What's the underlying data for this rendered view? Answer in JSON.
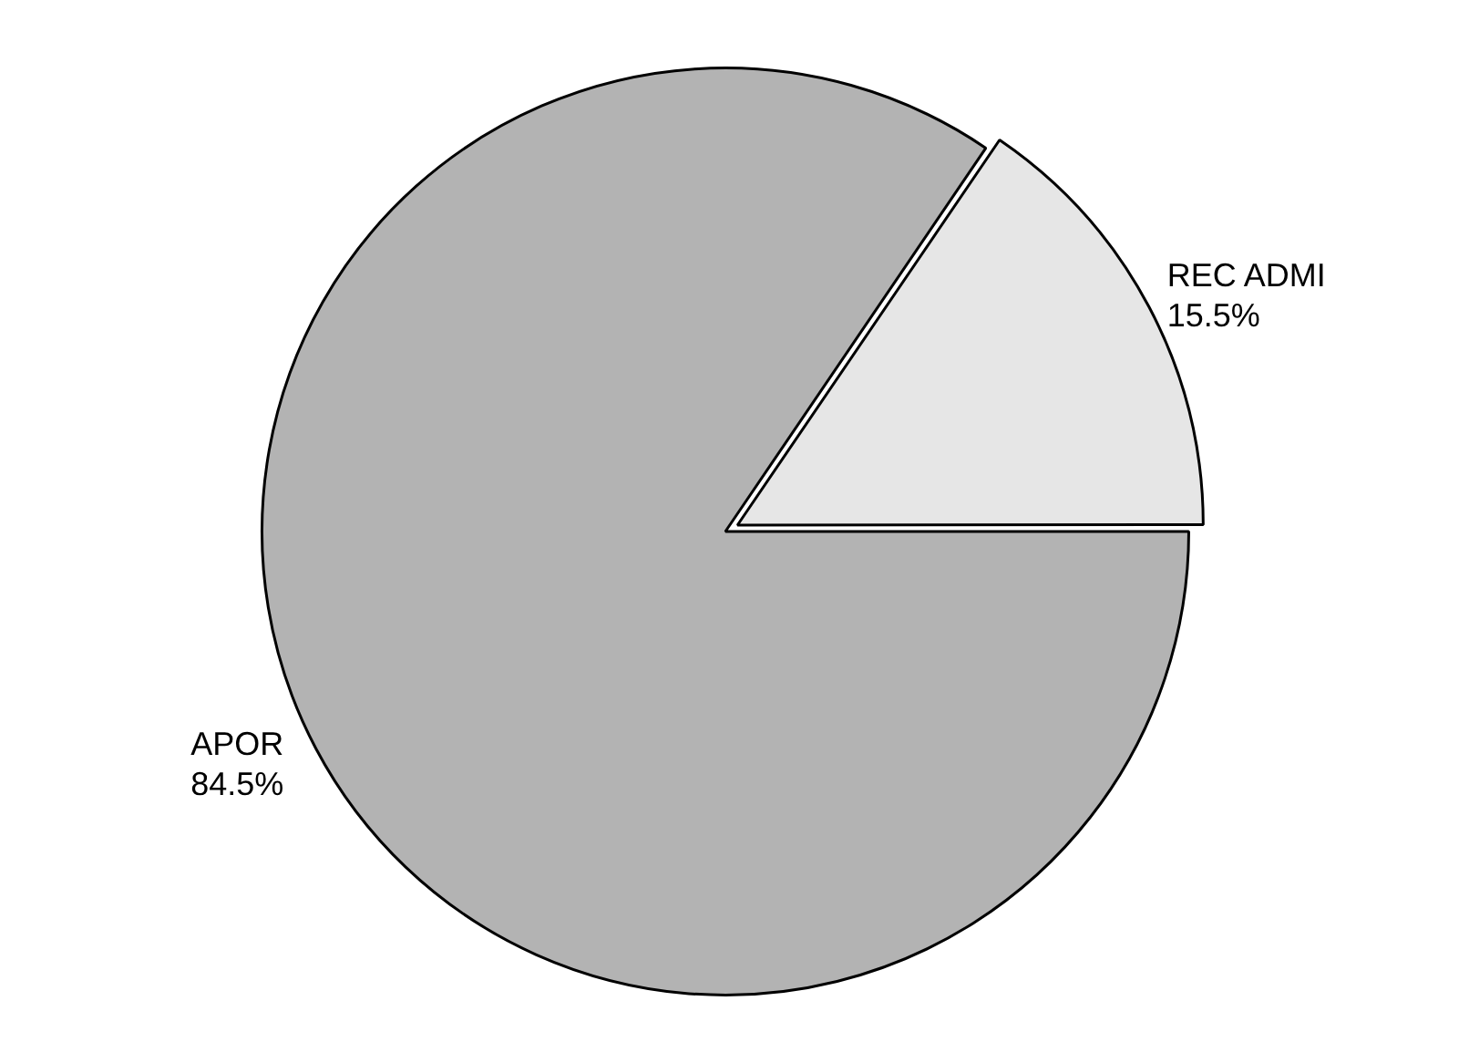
{
  "chart_data": {
    "type": "pie",
    "categories": [
      "REC ADMI",
      "APOR"
    ],
    "values": [
      15.5,
      84.5
    ],
    "value_labels": [
      "15.5%",
      "84.5%"
    ],
    "colors": [
      "#e6e6e6",
      "#b3b3b3"
    ],
    "legend": false
  }
}
